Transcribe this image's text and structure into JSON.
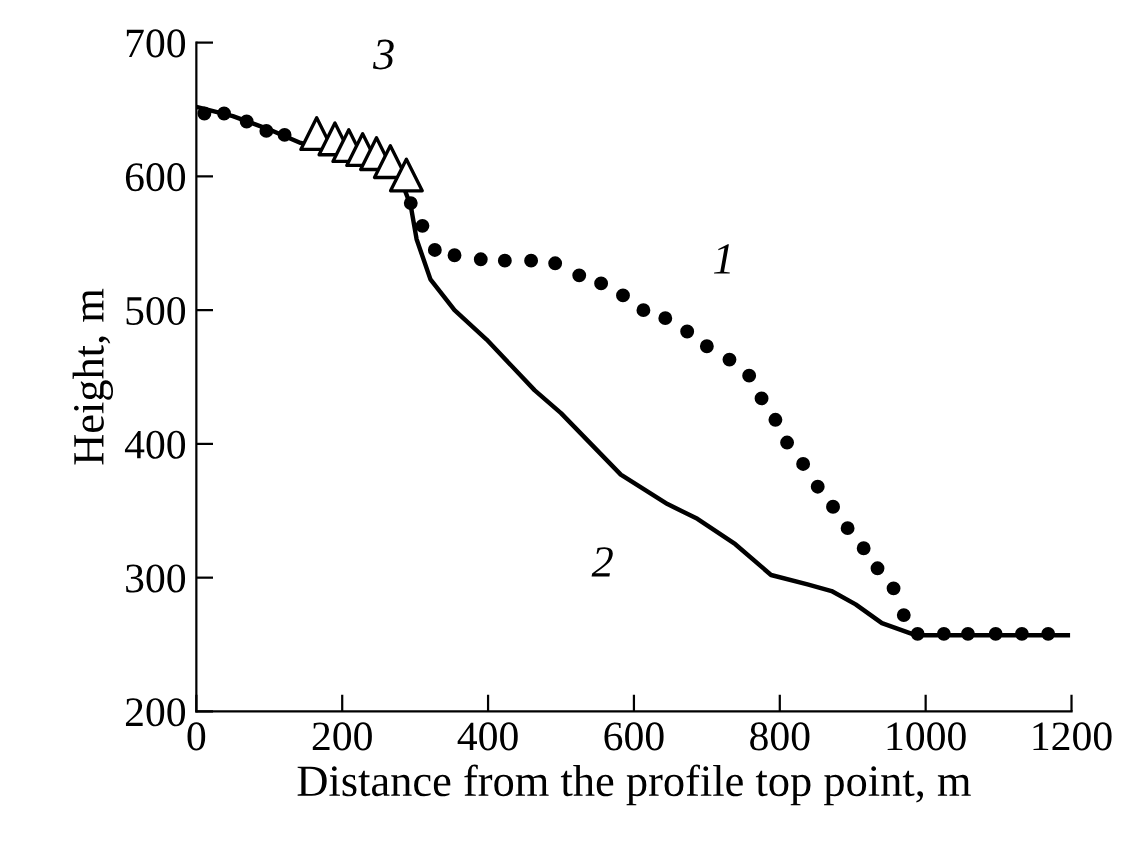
{
  "chart_data": {
    "type": "line",
    "xlabel": "Distance from the profile top point, m",
    "ylabel": "Height, m",
    "xlim": [
      0,
      1200
    ],
    "xticks": [
      0,
      200,
      400,
      600,
      800,
      1000,
      1200
    ],
    "ylim": [
      200,
      700
    ],
    "yticks": [
      200,
      300,
      400,
      500,
      600,
      700
    ],
    "grid": false,
    "series": [
      {
        "type": "scatter",
        "name": "1",
        "marker": "circle",
        "color": "#000000",
        "x": [
          11,
          38,
          69,
          96,
          121,
          294,
          310,
          327,
          354,
          390,
          423,
          459,
          492,
          525,
          555,
          585,
          613,
          643,
          673,
          700,
          731,
          758,
          775,
          794,
          810,
          832,
          852,
          873,
          893,
          915,
          934,
          956,
          970,
          989,
          1025,
          1058,
          1096,
          1132,
          1168
        ],
        "values": [
          647,
          647,
          641,
          634,
          631,
          580,
          563,
          545,
          541,
          538,
          537,
          537,
          535,
          526,
          520,
          511,
          500,
          494,
          484,
          473,
          463,
          451,
          434,
          418,
          401,
          385,
          368,
          353,
          337,
          322,
          307,
          292,
          272,
          258,
          258,
          258,
          258,
          258,
          258
        ]
      },
      {
        "name": "2",
        "line_style": "solid",
        "color": "#000000",
        "x": [
          0,
          50,
          100,
          143,
          200,
          250,
          280,
          294,
          302,
          321,
          354,
          398,
          464,
          500,
          582,
          646,
          687,
          739,
          788,
          838,
          871,
          904,
          940,
          986,
          1195
        ],
        "values": [
          652,
          645,
          635,
          625,
          618,
          610,
          598,
          578,
          553,
          523,
          500,
          478,
          440,
          423,
          377,
          355,
          344,
          325,
          302,
          295,
          290,
          280,
          266,
          257,
          257
        ]
      },
      {
        "type": "scatter",
        "name": "3",
        "marker": "triangle",
        "color": "#000000",
        "x": [
          165,
          190,
          209,
          228,
          247,
          266,
          288
        ],
        "values": [
          632,
          628,
          623,
          620,
          617,
          611,
          601
        ]
      }
    ]
  }
}
